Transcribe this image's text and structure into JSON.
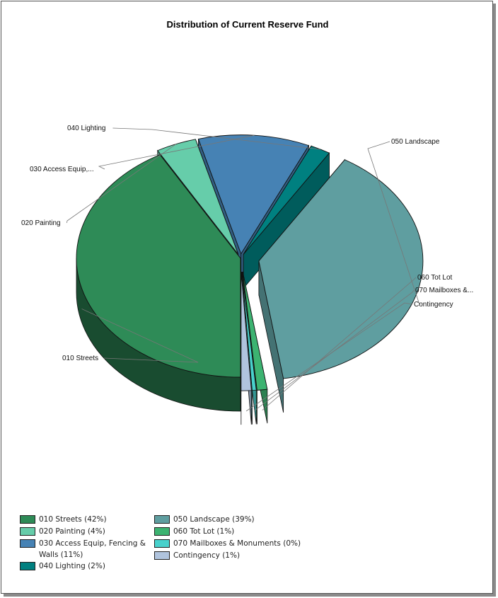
{
  "chart_data": {
    "type": "pie",
    "title": "Distribution of Current Reserve Fund",
    "series": [
      {
        "name": "010 Streets",
        "label": "010 Streets",
        "legend": "010 Streets (42%)",
        "percent": 42,
        "color": "#2e8b57"
      },
      {
        "name": "020 Painting",
        "label": "020 Painting",
        "legend": "020 Painting (4%)",
        "percent": 4,
        "color": "#66cdaa"
      },
      {
        "name": "030 Access Equip, Fencing & Walls",
        "label": "030 Access Equip,...",
        "legend": "030 Access Equip, Fencing & Walls (11%)",
        "percent": 11,
        "color": "#4682b4"
      },
      {
        "name": "040 Lighting",
        "label": "040 Lighting",
        "legend": "040 Lighting (2%)",
        "percent": 2,
        "color": "#008080"
      },
      {
        "name": "050 Landscape",
        "label": "050 Landscape",
        "legend": "050 Landscape (39%)",
        "percent": 39,
        "color": "#5f9ea0"
      },
      {
        "name": "060 Tot Lot",
        "label": "060 Tot Lot",
        "legend": "060 Tot Lot (1%)",
        "percent": 1,
        "color": "#3cb371"
      },
      {
        "name": "070 Mailboxes & Monuments",
        "label": "070 Mailboxes &...",
        "legend": "070 Mailboxes & Monuments (0%)",
        "percent": 0.4,
        "color": "#48d1cc"
      },
      {
        "name": "Contingency",
        "label": "Contingency",
        "legend": "Contingency (1%)",
        "percent": 1,
        "color": "#b0c4de"
      }
    ],
    "legend_placement": "bottom-left"
  }
}
